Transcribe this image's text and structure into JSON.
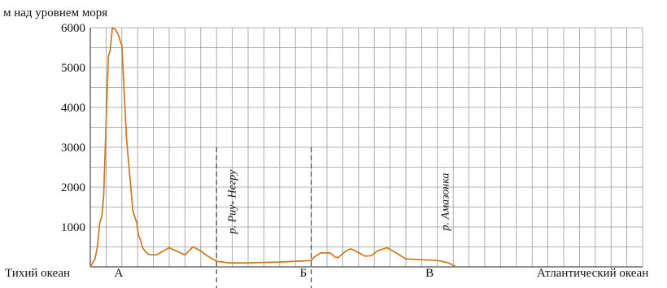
{
  "chart_data": {
    "type": "area",
    "ylabel": "м над уровнем моря",
    "ylim": [
      0,
      6000
    ],
    "yticks": [
      1000,
      2000,
      3000,
      4000,
      5000,
      6000
    ],
    "xlim": [
      0,
      34
    ],
    "left_label": "Тихий океан",
    "right_label": "Атлантический океан",
    "zones": [
      {
        "label": "А",
        "x": 1.8
      },
      {
        "label": "Б",
        "x": 13.5
      },
      {
        "label": "В",
        "x": 21.5
      }
    ],
    "boundaries": [
      8,
      14
    ],
    "rivers": [
      {
        "label": "р. Риу- Негру",
        "x": 9.2
      },
      {
        "label": "р. Амазонка",
        "x": 22.7
      }
    ],
    "series": [
      {
        "x": [
          0,
          0.3,
          0.45,
          0.6,
          0.75,
          0.85,
          1.0,
          1.15,
          1.25,
          1.4,
          1.6,
          1.75,
          2.0,
          2.3,
          2.7,
          2.95,
          3.05,
          3.2,
          3.3,
          3.45,
          3.7,
          4.2,
          5.0,
          6.0,
          6.5,
          7.0,
          7.4,
          8.0,
          8.8,
          10.0,
          12.0,
          14.0,
          14.2,
          14.6,
          15.2,
          15.5,
          15.7,
          16.2,
          16.5,
          16.8,
          17.4,
          17.8,
          18.2,
          18.8,
          19.3,
          20.0,
          22.0,
          22.7,
          23.2
        ],
        "y": [
          0,
          200,
          500,
          1100,
          1300,
          1800,
          3600,
          5300,
          5400,
          6000,
          5950,
          5850,
          5550,
          3200,
          1400,
          1100,
          800,
          650,
          500,
          400,
          310,
          300,
          480,
          300,
          500,
          400,
          280,
          140,
          100,
          100,
          120,
          160,
          250,
          350,
          350,
          250,
          230,
          400,
          450,
          400,
          270,
          280,
          400,
          480,
          370,
          200,
          160,
          100,
          0
        ]
      }
    ]
  }
}
